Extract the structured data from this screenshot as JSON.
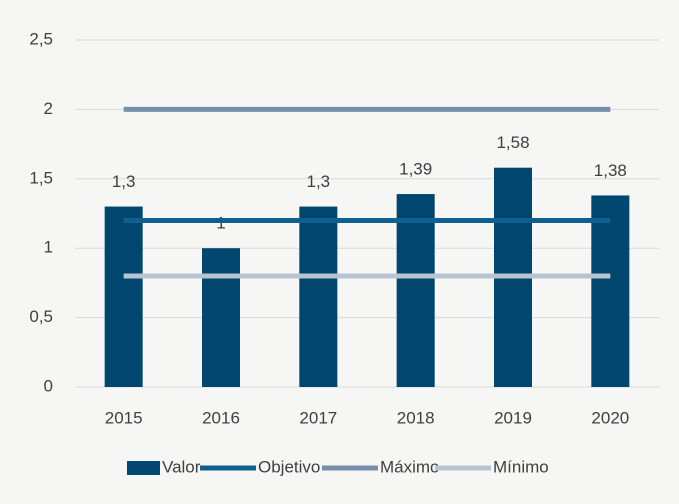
{
  "chart_data": {
    "type": "bar",
    "categories": [
      "2015",
      "2016",
      "2017",
      "2018",
      "2019",
      "2020"
    ],
    "series": [
      {
        "name": "Valor",
        "type": "bar",
        "color": "#00466e",
        "values": [
          1.3,
          1,
          1.3,
          1.39,
          1.58,
          1.38
        ],
        "value_labels": [
          "1,3",
          "1",
          "1,3",
          "1,39",
          "1,58",
          "1,38"
        ]
      },
      {
        "name": "Objetivo",
        "type": "line",
        "color": "#0f5f8f",
        "values": [
          1.2,
          1.2,
          1.2,
          1.2,
          1.2,
          1.2
        ]
      },
      {
        "name": "Máximo",
        "type": "line",
        "color": "#7690ab",
        "values": [
          2,
          2,
          2,
          2,
          2,
          2
        ]
      },
      {
        "name": "Mínimo",
        "type": "line",
        "color": "#b8c4d2",
        "values": [
          0.8,
          0.8,
          0.8,
          0.8,
          0.8,
          0.8
        ]
      }
    ],
    "ylim": [
      0,
      2.5
    ],
    "yticks": [
      0,
      {
        "value": 0.5,
        "label": "0,5"
      },
      1,
      {
        "value": 1.5,
        "label": "1,5"
      },
      2,
      {
        "value": 2.5,
        "label": "2,5"
      }
    ],
    "grid": true,
    "legend": "bottom"
  }
}
